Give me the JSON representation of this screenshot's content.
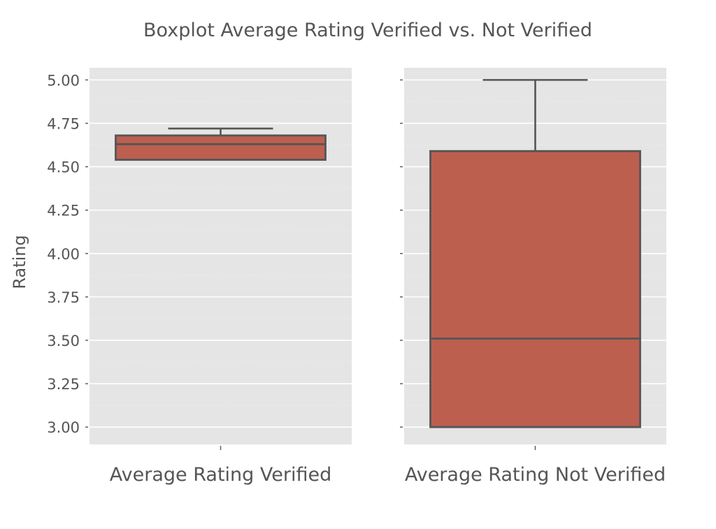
{
  "chart_data": {
    "type": "boxplot",
    "title": "Boxplot Average Rating Verified vs. Not Verified",
    "ylabel": "Rating",
    "ylim": [
      2.9,
      5.07
    ],
    "yticks": [
      3.0,
      3.25,
      3.5,
      3.75,
      4.0,
      4.25,
      4.5,
      4.75,
      5.0
    ],
    "ytick_labels": [
      "3.00",
      "3.25",
      "3.50",
      "3.75",
      "4.00",
      "4.25",
      "4.50",
      "4.75",
      "5.00"
    ],
    "sharey": true,
    "grid": true,
    "colors": {
      "box_fill": "#bc5f4f",
      "box_edge": "#555555",
      "panel_bg": "#e5e5e5",
      "grid": "#ffffff",
      "text": "#555555"
    },
    "panels": [
      {
        "category": "Average Rating Verified",
        "whisker_low": 4.54,
        "q1": 4.54,
        "median": 4.63,
        "q3": 4.68,
        "whisker_high": 4.72
      },
      {
        "category": "Average Rating Not Verified",
        "whisker_low": 3.0,
        "q1": 3.0,
        "median": 3.51,
        "q3": 4.59,
        "whisker_high": 5.0
      }
    ]
  }
}
